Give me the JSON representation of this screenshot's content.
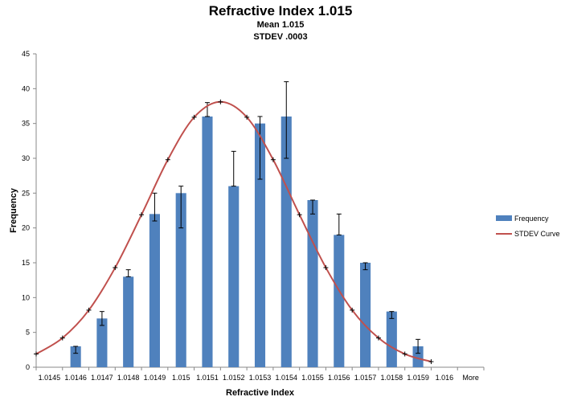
{
  "chart_data": {
    "type": "bar",
    "title": "Refractive Index 1.015",
    "subtitle_lines": [
      "Mean  1.015",
      "STDEV .0003"
    ],
    "xlabel": "Refractive Index",
    "ylabel": "Frequency",
    "ylim": [
      0,
      45
    ],
    "y_ticks": [
      0,
      5,
      10,
      15,
      20,
      25,
      30,
      35,
      40,
      45
    ],
    "grid": false,
    "legend_position": "right",
    "categories": [
      "1.0145",
      "1.0146",
      "1.0147",
      "1.0148",
      "1.0149",
      "1.015",
      "1.0151",
      "1.0152",
      "1.0153",
      "1.0154",
      "1.0155",
      "1.0156",
      "1.0157",
      "1.0158",
      "1.0159",
      "1.016",
      "More"
    ],
    "series": [
      {
        "name": "Frequency",
        "type": "bar",
        "color": "#4f81bd",
        "values": [
          0,
          3,
          7,
          13,
          22,
          25,
          36,
          26,
          35,
          36,
          24,
          19,
          15,
          8,
          3,
          0,
          0
        ],
        "error_low": [
          null,
          2,
          6,
          13,
          21,
          20,
          36,
          26,
          27,
          30,
          22,
          19,
          14,
          7,
          2,
          null,
          null
        ],
        "error_high": [
          null,
          3,
          8,
          14,
          25,
          26,
          38,
          31,
          36,
          41,
          24,
          22,
          15,
          8,
          4,
          null,
          null
        ]
      },
      {
        "name": "STDEV Curve",
        "type": "line",
        "color": "#c0504d",
        "values": [
          1.9,
          4.2,
          8.2,
          14.3,
          21.9,
          29.8,
          35.9,
          38.1,
          35.9,
          29.8,
          21.9,
          14.3,
          8.2,
          4.2,
          1.9,
          0.8,
          null
        ]
      }
    ]
  }
}
